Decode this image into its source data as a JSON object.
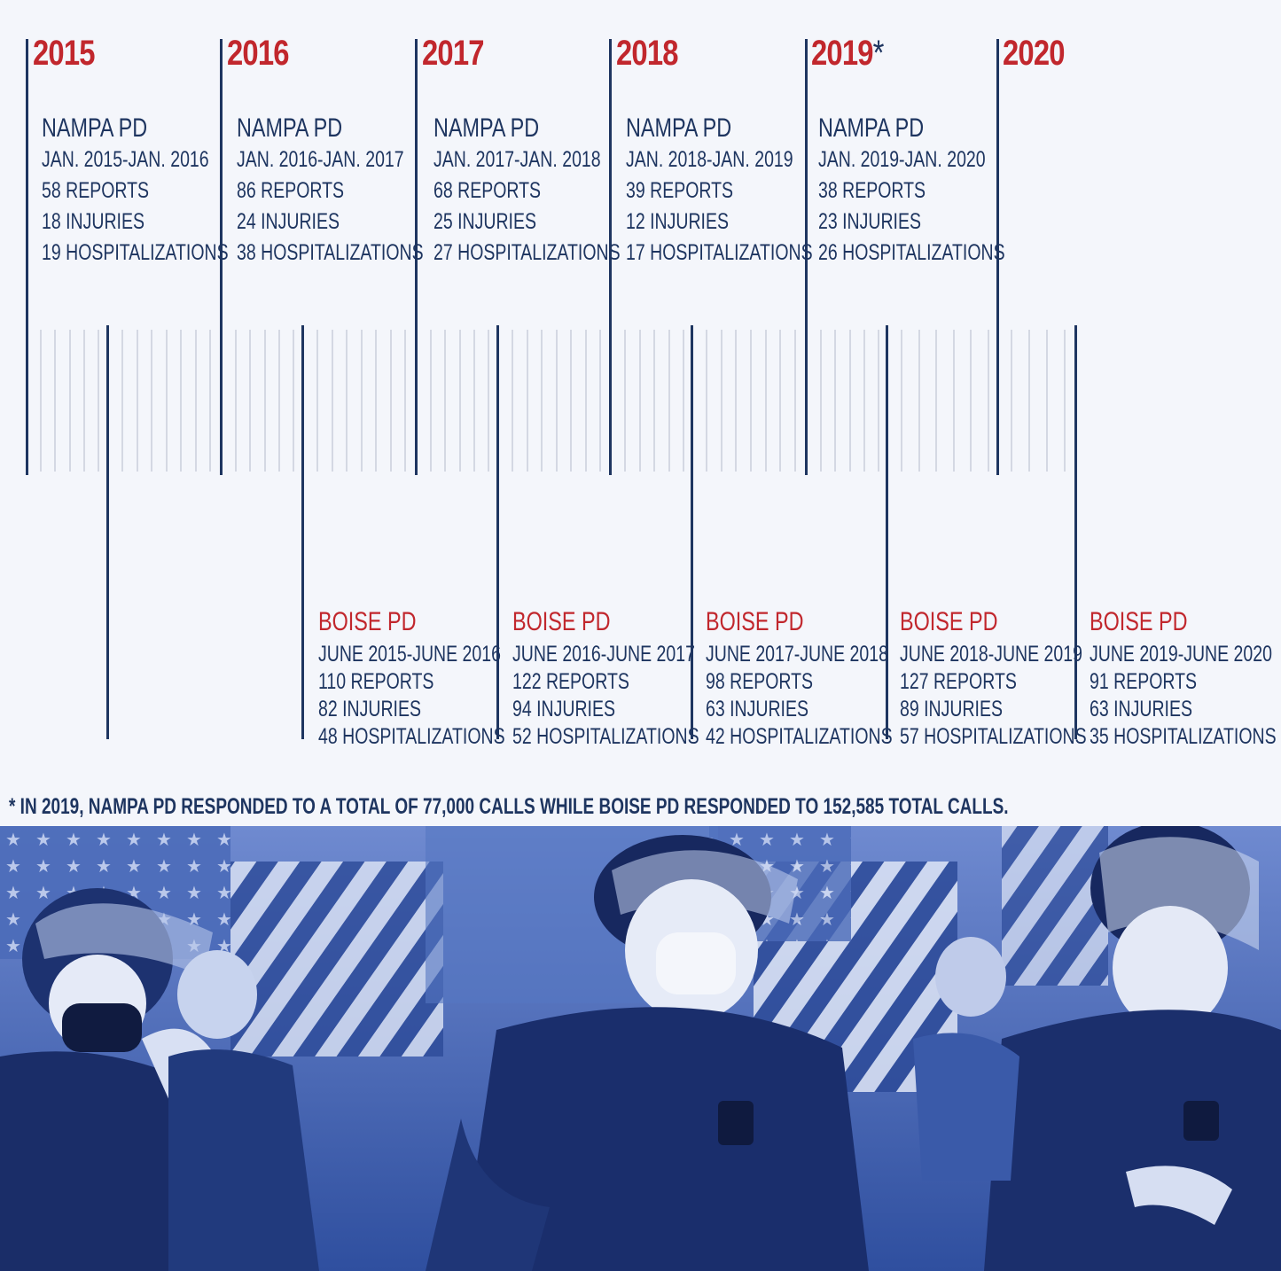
{
  "years": [
    {
      "year": "2015",
      "marker": ""
    },
    {
      "year": "2016",
      "marker": ""
    },
    {
      "year": "2017",
      "marker": ""
    },
    {
      "year": "2018",
      "marker": ""
    },
    {
      "year": "2019",
      "marker": "*"
    },
    {
      "year": "2020",
      "marker": ""
    }
  ],
  "nampa": [
    {
      "agency": "NAMPA PD",
      "period": "JAN. 2015-JAN. 2016",
      "reports": "58 REPORTS",
      "injuries": "18 INJURIES",
      "hospitalizations": "19 HOSPITALIZATIONS"
    },
    {
      "agency": "NAMPA PD",
      "period": "JAN. 2016-JAN. 2017",
      "reports": "86 REPORTS",
      "injuries": "24 INJURIES",
      "hospitalizations": "38  HOSPITALIZATIONS"
    },
    {
      "agency": "NAMPA PD",
      "period": "JAN. 2017-JAN. 2018",
      "reports": "68 REPORTS",
      "injuries": "25 INJURIES",
      "hospitalizations": "27 HOSPITALIZATIONS"
    },
    {
      "agency": "NAMPA PD",
      "period": "JAN. 2018-JAN. 2019",
      "reports": "39 REPORTS",
      "injuries": "12 INJURIES",
      "hospitalizations": "17 HOSPITALIZATIONS"
    },
    {
      "agency": "NAMPA PD",
      "period": "JAN. 2019-JAN. 2020",
      "reports": "38 REPORTS",
      "injuries": "23 INJURIES",
      "hospitalizations": "26 HOSPITALIZATIONS"
    }
  ],
  "boise": [
    {
      "agency": "BOISE PD",
      "period": "JUNE 2015-JUNE 2016",
      "reports": "110  REPORTS",
      "injuries": "82  INJURIES",
      "hospitalizations": "48  HOSPITALIZATIONS"
    },
    {
      "agency": "BOISE PD",
      "period": "JUNE 2016-JUNE 2017",
      "reports": "122 REPORTS",
      "injuries": "94 INJURIES",
      "hospitalizations": "52 HOSPITALIZATIONS"
    },
    {
      "agency": "BOISE PD",
      "period": "JUNE 2017-JUNE 2018",
      "reports": "98 REPORTS",
      "injuries": "63 INJURIES",
      "hospitalizations": "42 HOSPITALIZATIONS"
    },
    {
      "agency": "BOISE PD",
      "period": "JUNE 2018-JUNE 2019",
      "reports": "127 REPORTS",
      "injuries": "89 INJURIES",
      "hospitalizations": "57 HOSPITALIZATIONS"
    },
    {
      "agency": "BOISE PD",
      "period": "JUNE 2019-JUNE 2020",
      "reports": "91 REPORTS",
      "injuries": "63  INJURIES",
      "hospitalizations": "35 HOSPITALIZATIONS"
    }
  ],
  "footnote": "* IN 2019, NAMPA PD RESPONDED TO A TOTAL OF  77,000 CALLS WHILE BOISE PD RESPONDED TO 152,585 TOTAL CALLS.",
  "colors": {
    "navy": "#1e3560",
    "red": "#c1272d",
    "background": "#f4f6fb",
    "photo_tint": "#3d5fb0"
  }
}
